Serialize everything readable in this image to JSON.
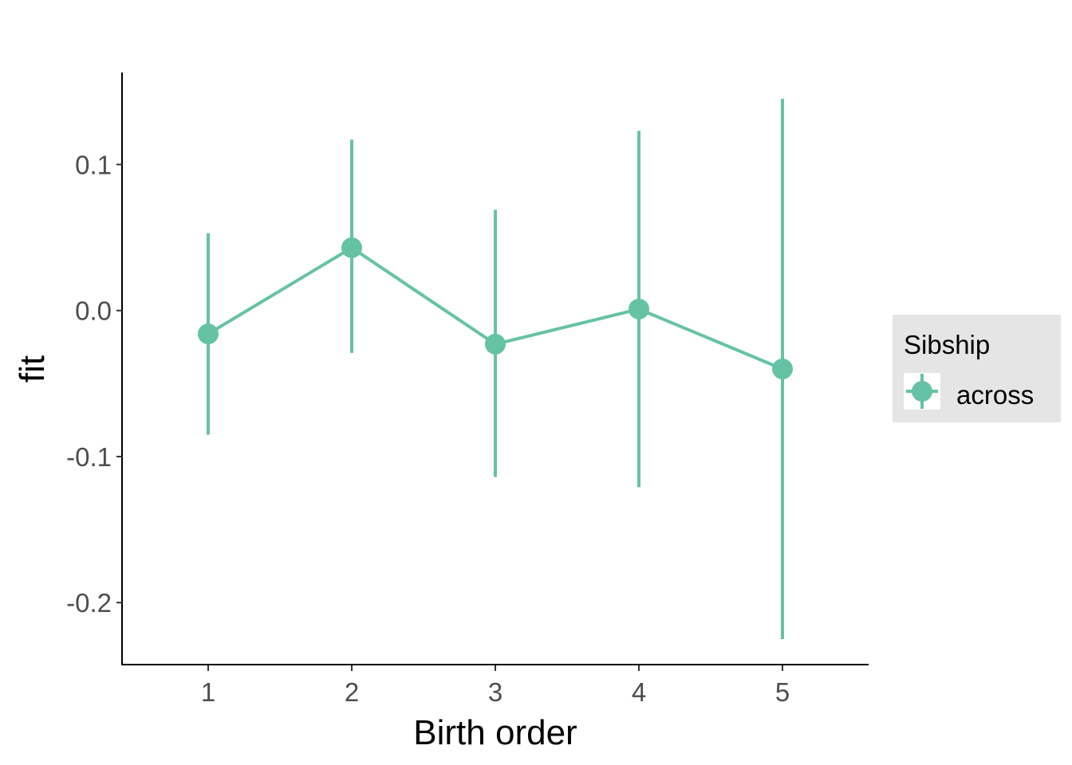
{
  "chart_data": {
    "type": "line",
    "xlabel": "Birth order",
    "ylabel": "fit",
    "categories": [
      "1",
      "2",
      "3",
      "4",
      "5"
    ],
    "y_ticks": [
      -0.2,
      -0.1,
      0.0,
      0.1
    ],
    "y_tick_labels": [
      "-0.2",
      "-0.1",
      "0.0",
      "0.1"
    ],
    "ylim": [
      -0.243,
      0.163
    ],
    "grid": false,
    "legend": {
      "title": "Sibship",
      "placement": "right",
      "entries": [
        "across"
      ]
    },
    "series": [
      {
        "name": "across",
        "color": "#66c2a5",
        "values": [
          -0.016,
          0.043,
          -0.023,
          0.001,
          -0.04
        ],
        "lower": [
          -0.085,
          -0.029,
          -0.114,
          -0.121,
          -0.225
        ],
        "upper": [
          0.053,
          0.117,
          0.069,
          0.123,
          0.145
        ]
      }
    ]
  }
}
